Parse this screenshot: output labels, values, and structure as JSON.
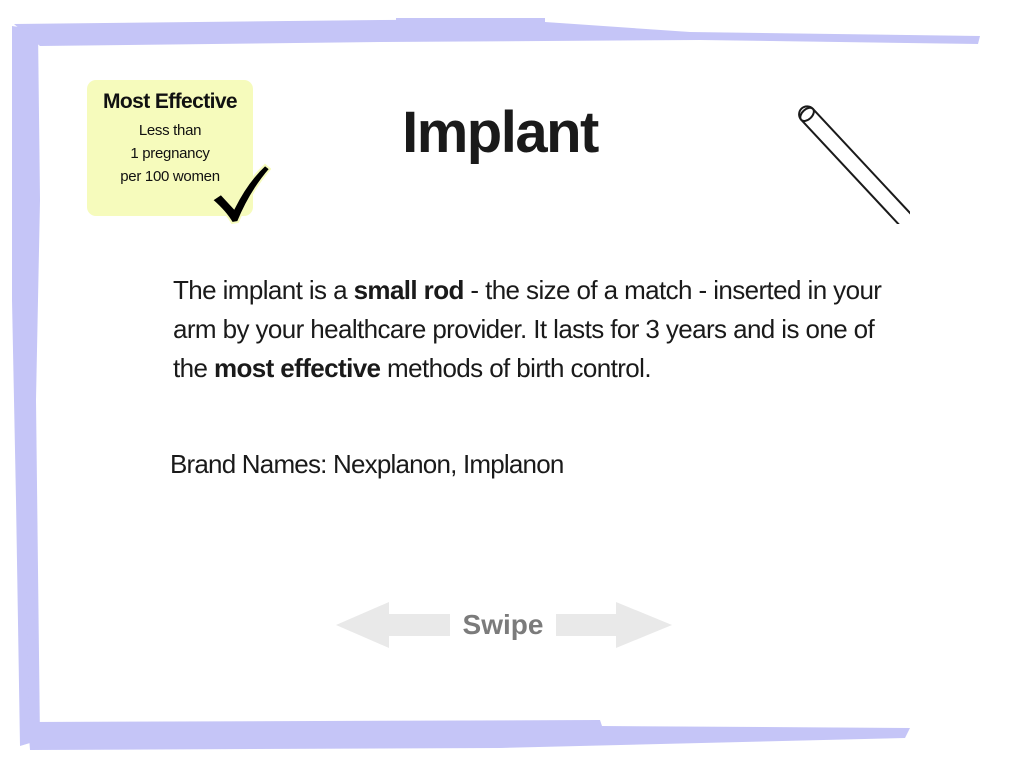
{
  "badge": {
    "title": "Most Effective",
    "line1": "Less than",
    "line2": "1 pregnancy",
    "line3": "per 100 women",
    "background_color": "#f6fbbc",
    "icon": "checkmark-icon"
  },
  "page": {
    "title": "Implant",
    "illustration_icon": "implant-rod-icon"
  },
  "description": {
    "part1": "The implant is a ",
    "bold1": "small rod",
    "part2": " - the size of a match - inserted in your arm by your healthcare provider. It lasts for 3 years and is one of the ",
    "bold2": "most effective",
    "part3": " methods of birth control."
  },
  "brand_names": "Brand Names: Nexplanon, Implanon",
  "swipe": {
    "label": "Swipe",
    "left_icon": "arrow-left-icon",
    "right_icon": "arrow-right-icon",
    "arrow_color": "#e9e9e9",
    "label_color": "#7b7b7b"
  },
  "frame": {
    "color": "#c5c5f7"
  }
}
